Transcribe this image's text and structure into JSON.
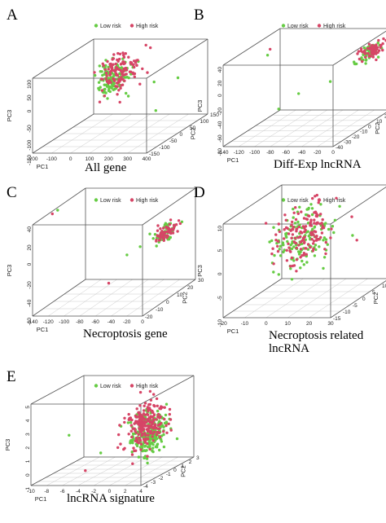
{
  "colors": {
    "low": "#66cc44",
    "high": "#d64566"
  },
  "chart_data": [
    {
      "type": "scatter",
      "panel": "A",
      "caption": "All gene",
      "legend": [
        "Low risk",
        "High risk"
      ],
      "legend_position": "top",
      "axes": {
        "x": "PC1",
        "y": "PC2",
        "z": "PC3"
      },
      "xticks": [
        "-200",
        "-100",
        "0",
        "100",
        "200",
        "300",
        "400"
      ],
      "yticks": [
        "-150",
        "-100",
        "-50",
        "0",
        "50",
        "100",
        "150"
      ],
      "zticks": [
        "-150",
        "-100",
        "-50",
        "0",
        "50",
        "100"
      ],
      "xlim": [
        -200,
        400
      ],
      "ylim": [
        -150,
        150
      ],
      "zlim": [
        -150,
        100
      ],
      "clusters": [
        {
          "series": "Low risk",
          "count": 130,
          "center": [
            20,
            40,
            20
          ],
          "sd": [
            30,
            30,
            30
          ],
          "seed": 11
        },
        {
          "series": "High risk",
          "count": 130,
          "center": [
            40,
            55,
            35
          ],
          "sd": [
            35,
            35,
            35
          ],
          "seed": 12
        }
      ],
      "outliers": [
        {
          "series": "Low risk",
          "points": [
            [
              340,
              60,
              10
            ],
            [
              320,
              -30,
              -60
            ],
            [
              150,
              120,
              -30
            ]
          ]
        },
        {
          "series": "High risk",
          "points": [
            [
              120,
              130,
              80
            ]
          ]
        }
      ]
    },
    {
      "type": "scatter",
      "panel": "B",
      "caption": "Diff-Exp lncRNA",
      "legend": [
        "Low risk",
        "High risk"
      ],
      "legend_position": "top",
      "axes": {
        "x": "PC1",
        "y": "PC2",
        "z": "PC3"
      },
      "xticks": [
        "-140",
        "-120",
        "-100",
        "-80",
        "-60",
        "-40",
        "-20",
        "0"
      ],
      "yticks": [
        "-40",
        "-30",
        "-20",
        "-10",
        "0",
        "10",
        "20",
        "30"
      ],
      "zticks": [
        "-80",
        "-60",
        "-40",
        "-20",
        "0",
        "20",
        "40"
      ],
      "xlim": [
        -140,
        0
      ],
      "ylim": [
        -40,
        30
      ],
      "zlim": [
        -80,
        40
      ],
      "clusters": [
        {
          "series": "Low risk",
          "count": 55,
          "center": [
            -5,
            10,
            20
          ],
          "sd": [
            3,
            6,
            5
          ],
          "seed": 21
        },
        {
          "series": "High risk",
          "count": 60,
          "center": [
            -4,
            12,
            22
          ],
          "sd": [
            3,
            6,
            5
          ],
          "seed": 22
        }
      ],
      "outliers": [
        {
          "series": "Low risk",
          "points": [
            [
              -90,
              -20,
              -40
            ],
            [
              -75,
              -10,
              -25
            ],
            [
              -45,
              0,
              -15
            ],
            [
              -20,
              5,
              10
            ],
            [
              -130,
              5,
              20
            ]
          ]
        },
        {
          "series": "High risk",
          "points": [
            [
              -132,
              10,
              25
            ]
          ]
        }
      ]
    },
    {
      "type": "scatter",
      "panel": "C",
      "caption": "Necroptosis gene",
      "legend": [
        "Low risk",
        "High risk"
      ],
      "legend_position": "top",
      "axes": {
        "x": "PC1",
        "y": "PC2",
        "z": "PC3"
      },
      "xticks": [
        "-140",
        "-120",
        "-100",
        "-80",
        "-60",
        "-40",
        "-20",
        "0"
      ],
      "yticks": [
        "-20",
        "-10",
        "0",
        "10",
        "20",
        "30"
      ],
      "zticks": [
        "-60",
        "-40",
        "-20",
        "0",
        "20",
        "40"
      ],
      "xlim": [
        -140,
        0
      ],
      "ylim": [
        -20,
        30
      ],
      "zlim": [
        -60,
        40
      ],
      "clusters": [
        {
          "series": "Low risk",
          "count": 60,
          "center": [
            -6,
            5,
            10
          ],
          "sd": [
            4,
            5,
            4
          ],
          "seed": 31
        },
        {
          "series": "High risk",
          "count": 65,
          "center": [
            -5,
            6,
            11
          ],
          "sd": [
            4,
            5,
            4
          ],
          "seed": 32
        }
      ],
      "outliers": [
        {
          "series": "Low risk",
          "points": [
            [
              -135,
              0,
              50
            ],
            [
              -40,
              -5,
              -5
            ],
            [
              -30,
              0,
              0
            ],
            [
              -20,
              5,
              5
            ]
          ]
        },
        {
          "series": "High risk",
          "points": [
            [
              -135,
              -5,
              40
            ],
            [
              -70,
              0,
              -40
            ]
          ]
        }
      ]
    },
    {
      "type": "scatter",
      "panel": "D",
      "caption": "Necroptosis related lncRNA",
      "caption_lines": [
        "Necroptosis related",
        "lncRNA"
      ],
      "legend": [
        "Low risk",
        "High risk"
      ],
      "legend_position": "top",
      "axes": {
        "x": "PC1",
        "y": "PC2",
        "z": "PC3"
      },
      "xticks": [
        "-20",
        "-10",
        "0",
        "10",
        "20",
        "30"
      ],
      "yticks": [
        "-15",
        "-10",
        "-5",
        "0",
        "5",
        "10",
        "15"
      ],
      "zticks": [
        "-10",
        "-5",
        "0",
        "5",
        "10"
      ],
      "xlim": [
        -20,
        30
      ],
      "ylim": [
        -15,
        15
      ],
      "zlim": [
        -10,
        10
      ],
      "clusters": [
        {
          "series": "Low risk",
          "count": 140,
          "center": [
            2,
            2,
            2
          ],
          "sd": [
            5,
            5,
            3
          ],
          "seed": 41
        },
        {
          "series": "High risk",
          "count": 140,
          "center": [
            2,
            2,
            3
          ],
          "sd": [
            5,
            5,
            3
          ],
          "seed": 42
        }
      ],
      "outliers": [
        {
          "series": "Low risk",
          "points": [
            [
              -12,
              0,
              2
            ],
            [
              22,
              5,
              2
            ]
          ]
        },
        {
          "series": "High risk",
          "points": [
            [
              24,
              5,
              1
            ],
            [
              0,
              10,
              9
            ]
          ]
        }
      ]
    },
    {
      "type": "scatter",
      "panel": "E",
      "caption": "lncRNA signature",
      "legend": [
        "Low risk",
        "High risk"
      ],
      "legend_position": "top",
      "axes": {
        "x": "PC1",
        "y": "PC2",
        "z": "PC3"
      },
      "xticks": [
        "-10",
        "-8",
        "-6",
        "-4",
        "-2",
        "0",
        "2",
        "4"
      ],
      "yticks": [
        "-4",
        "-3",
        "-2",
        "-1",
        "0",
        "1",
        "2",
        "3"
      ],
      "zticks": [
        "-1",
        "0",
        "1",
        "2",
        "3",
        "4",
        "5"
      ],
      "xlim": [
        -10,
        4
      ],
      "ylim": [
        -4,
        3
      ],
      "zlim": [
        -1,
        5
      ],
      "clusters": [
        {
          "series": "Low risk",
          "count": 220,
          "center": [
            1.6,
            -0.5,
            1.8
          ],
          "sd": [
            0.8,
            1,
            0.8
          ],
          "seed": 51
        },
        {
          "series": "High risk",
          "count": 220,
          "center": [
            1.0,
            -0.3,
            2.4
          ],
          "sd": [
            0.8,
            1,
            0.8
          ],
          "seed": 52
        }
      ],
      "outliers": [
        {
          "series": "Low risk",
          "points": [
            [
              -9,
              0,
              1.5
            ],
            [
              -4,
              -1,
              0.5
            ]
          ]
        },
        {
          "series": "High risk",
          "points": [
            [
              -5,
              -2,
              -0.5
            ]
          ]
        }
      ]
    }
  ]
}
